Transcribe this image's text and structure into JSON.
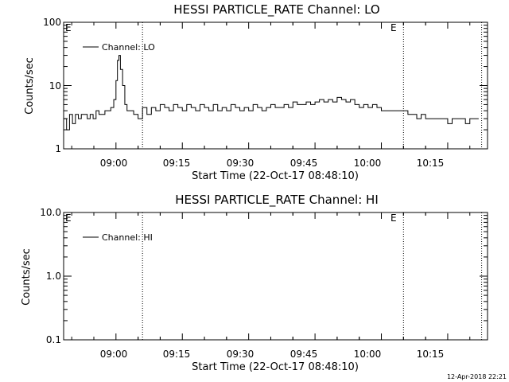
{
  "footer_timestamp": "12-Apr-2018 22:21",
  "chart_data": [
    {
      "type": "line",
      "title": "HESSI PARTICLE_RATE Channel: LO",
      "xlabel": "Start Time (22-Oct-17 08:48:10)",
      "ylabel": "Counts/sec",
      "yscale": "log",
      "ylim": [
        1,
        100
      ],
      "xlim": [
        "08:48:10",
        "10:24:00"
      ],
      "x_ticks": [
        "09:00",
        "09:15",
        "09:30",
        "09:45",
        "10:00",
        "10:15"
      ],
      "y_ticks": [
        "1",
        "10",
        "100"
      ],
      "legend": {
        "placement": "top-left",
        "entries": [
          "Channel: LO"
        ]
      },
      "annotations": [
        {
          "text": "E",
          "at": "08:48:10"
        },
        {
          "text": "E",
          "at": "10:05:00"
        }
      ],
      "vertical_markers": [
        "09:06:00",
        "10:05:00",
        "10:22:40"
      ],
      "series": [
        {
          "name": "Channel: LO",
          "x": [
            "08:48:10",
            "08:48:50",
            "08:49:30",
            "08:50:10",
            "08:50:50",
            "08:51:30",
            "08:52:10",
            "08:52:50",
            "08:53:30",
            "08:54:10",
            "08:54:50",
            "08:55:30",
            "08:56:10",
            "08:56:50",
            "08:57:30",
            "08:58:10",
            "08:58:50",
            "08:59:30",
            "09:00:00",
            "09:00:20",
            "09:00:40",
            "09:01:00",
            "09:01:30",
            "09:02:00",
            "09:02:30",
            "09:03:00",
            "09:04:00",
            "09:05:00",
            "09:06:00",
            "09:07:00",
            "09:08:00",
            "09:09:00",
            "09:10:00",
            "09:11:00",
            "09:12:00",
            "09:13:00",
            "09:14:00",
            "09:15:00",
            "09:16:00",
            "09:17:00",
            "09:18:00",
            "09:19:00",
            "09:20:00",
            "09:21:00",
            "09:22:00",
            "09:23:00",
            "09:24:00",
            "09:25:00",
            "09:26:00",
            "09:27:00",
            "09:28:00",
            "09:29:00",
            "09:30:00",
            "09:31:00",
            "09:32:00",
            "09:33:00",
            "09:34:00",
            "09:35:00",
            "09:36:00",
            "09:37:00",
            "09:38:00",
            "09:39:00",
            "09:40:00",
            "09:41:00",
            "09:42:00",
            "09:43:00",
            "09:44:00",
            "09:45:00",
            "09:46:00",
            "09:47:00",
            "09:48:00",
            "09:49:00",
            "09:50:00",
            "09:51:00",
            "09:52:00",
            "09:53:00",
            "09:54:00",
            "09:55:00",
            "09:56:00",
            "09:57:00",
            "09:58:00",
            "09:59:00",
            "10:00:00",
            "10:01:00",
            "10:02:00",
            "10:03:00",
            "10:04:00",
            "10:05:00",
            "10:06:00",
            "10:07:00",
            "10:08:00",
            "10:09:00",
            "10:10:00",
            "10:11:00",
            "10:12:00",
            "10:13:00",
            "10:14:00",
            "10:15:00",
            "10:16:00",
            "10:17:00",
            "10:18:00",
            "10:19:00",
            "10:20:00",
            "10:21:00",
            "10:22:00"
          ],
          "values": [
            3.0,
            2.0,
            3.5,
            2.5,
            3.5,
            3.0,
            3.5,
            3.5,
            3.0,
            3.5,
            3.0,
            4.0,
            3.5,
            3.5,
            4.0,
            4.0,
            4.5,
            6.0,
            12.0,
            25.0,
            30.0,
            18.0,
            10.0,
            5.0,
            4.0,
            4.0,
            3.5,
            3.0,
            4.5,
            3.5,
            4.5,
            4.0,
            5.0,
            4.5,
            4.0,
            5.0,
            4.5,
            4.0,
            5.0,
            4.5,
            4.0,
            5.0,
            4.5,
            4.0,
            5.0,
            4.0,
            4.5,
            4.0,
            5.0,
            4.5,
            4.0,
            4.5,
            4.0,
            5.0,
            4.5,
            4.0,
            4.5,
            5.0,
            4.5,
            4.5,
            5.0,
            4.5,
            5.5,
            5.0,
            5.0,
            5.5,
            5.0,
            5.5,
            6.0,
            5.5,
            6.0,
            5.5,
            6.5,
            6.0,
            5.5,
            6.0,
            5.0,
            4.5,
            5.0,
            4.5,
            5.0,
            4.5,
            4.0,
            4.0,
            4.0,
            4.0,
            4.0,
            4.0,
            3.5,
            3.5,
            3.0,
            3.5,
            3.0,
            3.0,
            3.0,
            3.0,
            3.0,
            2.5,
            3.0,
            3.0,
            3.0,
            2.5,
            3.0,
            3.0,
            3.0
          ]
        }
      ]
    },
    {
      "type": "line",
      "title": "HESSI PARTICLE_RATE Channel: HI",
      "xlabel": "Start Time (22-Oct-17 08:48:10)",
      "ylabel": "Counts/sec",
      "yscale": "log",
      "ylim": [
        0.1,
        10
      ],
      "xlim": [
        "08:48:10",
        "10:24:00"
      ],
      "x_ticks": [
        "09:00",
        "09:15",
        "09:30",
        "09:45",
        "10:00",
        "10:15"
      ],
      "y_ticks": [
        "0.1",
        "1.0",
        "10.0"
      ],
      "legend": {
        "placement": "top-left",
        "entries": [
          "Channel: HI"
        ]
      },
      "annotations": [
        {
          "text": "E",
          "at": "08:48:10"
        },
        {
          "text": "E",
          "at": "10:05:00"
        }
      ],
      "vertical_markers": [
        "09:06:00",
        "10:05:00",
        "10:22:40"
      ],
      "series": [
        {
          "name": "Channel: HI",
          "x": [],
          "values": []
        }
      ]
    }
  ]
}
